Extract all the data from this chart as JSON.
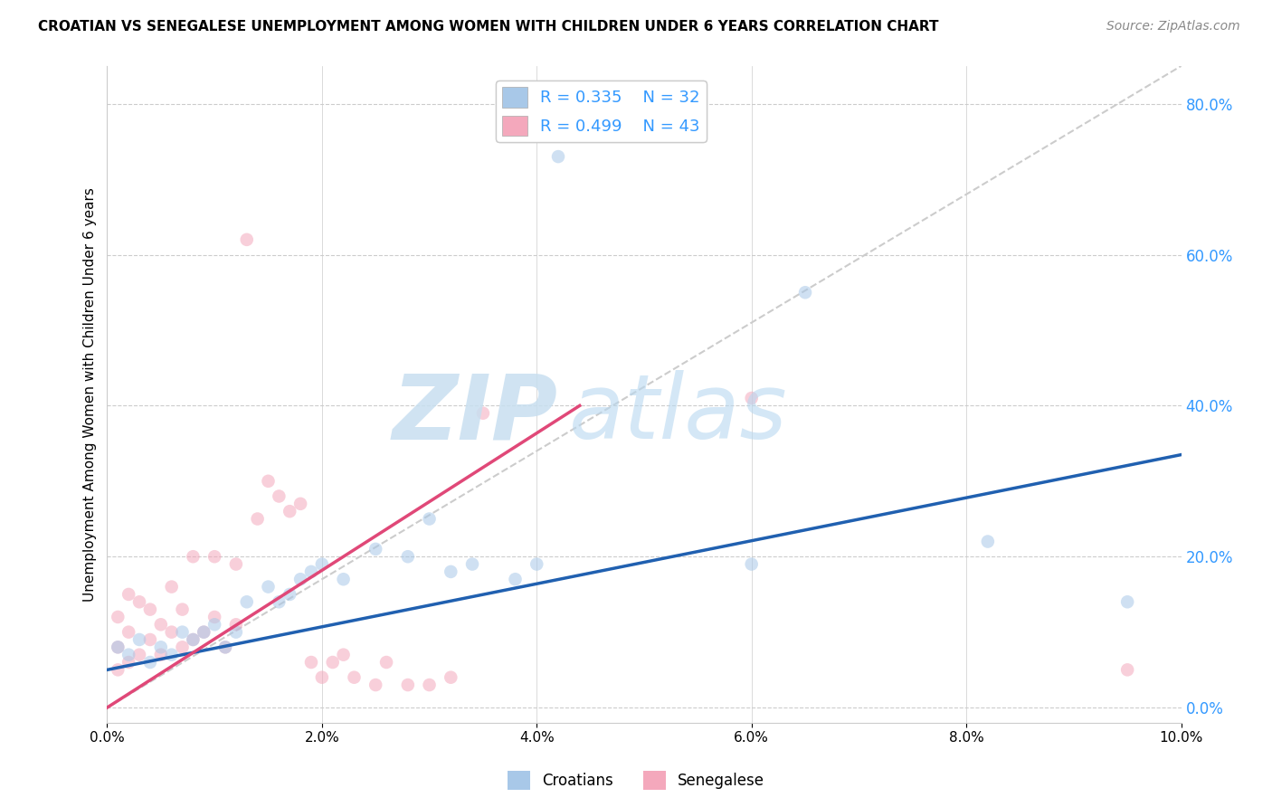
{
  "title": "CROATIAN VS SENEGALESE UNEMPLOYMENT AMONG WOMEN WITH CHILDREN UNDER 6 YEARS CORRELATION CHART",
  "source": "Source: ZipAtlas.com",
  "ylabel": "Unemployment Among Women with Children Under 6 years",
  "xlim": [
    0.0,
    0.1
  ],
  "ylim": [
    -0.02,
    0.85
  ],
  "x_ticks": [
    0.0,
    0.02,
    0.04,
    0.06,
    0.08,
    0.1
  ],
  "y_ticks_right": [
    0.0,
    0.2,
    0.4,
    0.6,
    0.8
  ],
  "croatians_color": "#a8c8e8",
  "senegalese_color": "#f4a8bc",
  "trend_blue": "#2060b0",
  "trend_pink": "#e04878",
  "diag_color": "#cccccc",
  "legend_R_blue": "R = 0.335",
  "legend_N_blue": "N = 32",
  "legend_R_pink": "R = 0.499",
  "legend_N_pink": "N = 43",
  "croatian_x": [
    0.001,
    0.002,
    0.003,
    0.004,
    0.005,
    0.006,
    0.007,
    0.008,
    0.009,
    0.01,
    0.011,
    0.012,
    0.013,
    0.015,
    0.016,
    0.017,
    0.018,
    0.019,
    0.02,
    0.022,
    0.025,
    0.028,
    0.03,
    0.032,
    0.034,
    0.038,
    0.04,
    0.042,
    0.06,
    0.065,
    0.082,
    0.095
  ],
  "croatian_y": [
    0.08,
    0.07,
    0.09,
    0.06,
    0.08,
    0.07,
    0.1,
    0.09,
    0.1,
    0.11,
    0.08,
    0.1,
    0.14,
    0.16,
    0.14,
    0.15,
    0.17,
    0.18,
    0.19,
    0.17,
    0.21,
    0.2,
    0.25,
    0.18,
    0.19,
    0.17,
    0.19,
    0.73,
    0.19,
    0.55,
    0.22,
    0.14
  ],
  "senegalese_x": [
    0.001,
    0.001,
    0.001,
    0.002,
    0.002,
    0.002,
    0.003,
    0.003,
    0.004,
    0.004,
    0.005,
    0.005,
    0.006,
    0.006,
    0.007,
    0.007,
    0.008,
    0.008,
    0.009,
    0.01,
    0.01,
    0.011,
    0.012,
    0.012,
    0.013,
    0.014,
    0.015,
    0.016,
    0.017,
    0.018,
    0.019,
    0.02,
    0.021,
    0.022,
    0.023,
    0.025,
    0.026,
    0.028,
    0.03,
    0.032,
    0.035,
    0.06,
    0.095
  ],
  "senegalese_y": [
    0.05,
    0.08,
    0.12,
    0.06,
    0.1,
    0.15,
    0.07,
    0.14,
    0.09,
    0.13,
    0.07,
    0.11,
    0.1,
    0.16,
    0.08,
    0.13,
    0.09,
    0.2,
    0.1,
    0.12,
    0.2,
    0.08,
    0.11,
    0.19,
    0.62,
    0.25,
    0.3,
    0.28,
    0.26,
    0.27,
    0.06,
    0.04,
    0.06,
    0.07,
    0.04,
    0.03,
    0.06,
    0.03,
    0.03,
    0.04,
    0.39,
    0.41,
    0.05
  ],
  "blue_trend_x0": 0.0,
  "blue_trend_y0": 0.05,
  "blue_trend_x1": 0.1,
  "blue_trend_y1": 0.335,
  "pink_trend_x0": 0.0,
  "pink_trend_y0": 0.0,
  "pink_trend_x1": 0.044,
  "pink_trend_y1": 0.4,
  "watermark_zip": "ZIP",
  "watermark_atlas": "atlas",
  "background_color": "#ffffff",
  "marker_size": 110,
  "marker_alpha": 0.55
}
